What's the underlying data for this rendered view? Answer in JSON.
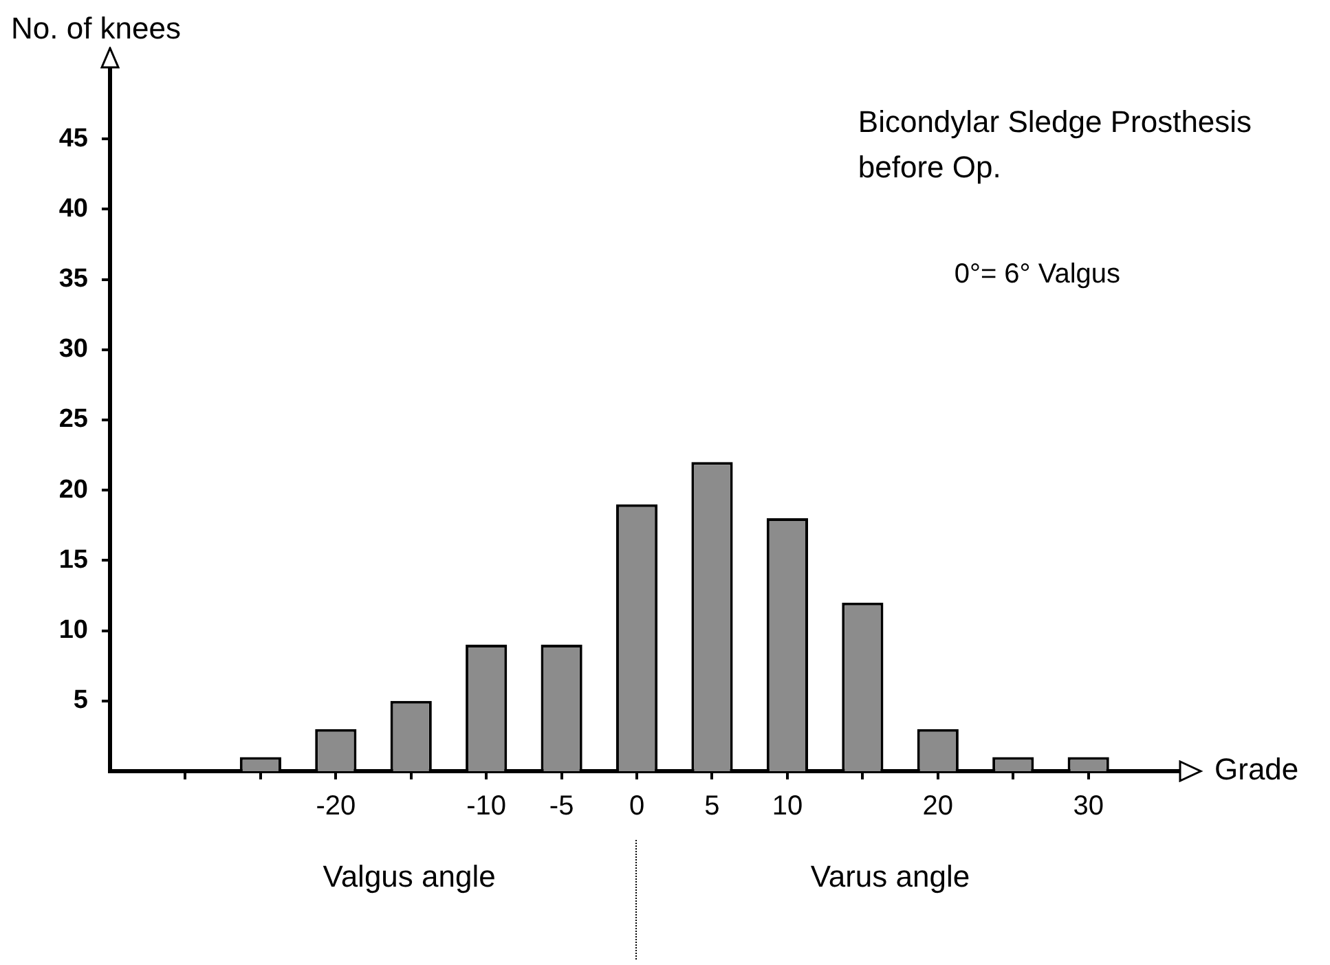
{
  "chart_data": {
    "type": "bar",
    "xlabel": "Grade",
    "ylabel": "No. of knees",
    "annotations": [
      "Bicondylar Sledge Prosthesis",
      "before Op.",
      "0°= 6° Valgus",
      "Valgus angle",
      "Varus angle"
    ],
    "x": [
      -25,
      -20,
      -15,
      -10,
      -5,
      0,
      5,
      10,
      15,
      20,
      25,
      30
    ],
    "values": [
      1,
      3,
      5,
      9,
      9,
      19,
      22,
      18,
      12,
      3,
      1,
      1
    ],
    "color": "#8c8c8c",
    "xlim": [
      -35,
      36
    ],
    "xticks": [
      {
        "value": -30,
        "label": null
      },
      {
        "value": -25,
        "label": null
      },
      -20,
      {
        "value": -15,
        "label": null
      },
      -10,
      -5,
      0,
      5,
      10,
      {
        "value": 15,
        "label": null
      },
      20,
      {
        "value": 25,
        "label": null
      },
      30
    ],
    "ylim": [
      0,
      50
    ],
    "yticks": [
      5,
      10,
      15,
      20,
      25,
      30,
      35,
      40,
      45
    ],
    "grid": false,
    "legend": false
  }
}
